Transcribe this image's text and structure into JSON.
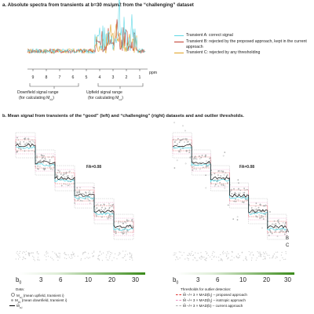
{
  "panel_a": {
    "title": "a. Absolute spectra from transients at b=30 ms/µm2 from the “challenging” dataset",
    "ppm_label": "ppm",
    "ppm_ticks": [
      "9",
      "8",
      "7",
      "6",
      "5",
      "4",
      "3",
      "2",
      "1"
    ],
    "legend": [
      {
        "label": "Transient A: correct signal",
        "color": "#5fd8e6"
      },
      {
        "label": "Transient B: rejected by the proposed approach, kept in the current approach",
        "color": "#c0392b"
      },
      {
        "label": "Transient C: rejected by any thresholding",
        "color": "#e0a020"
      }
    ],
    "downfield_label": "Downfield signal range",
    "downfield_sub": "(for calculating M",
    "downfield_subscript": "d,i",
    "upfield_label": "Upfield signal range",
    "upfield_sub": "(for calculating M",
    "upfield_subscript": "u,i"
  },
  "panel_b": {
    "title": "b. Mean signal from transients of the “good” (left) and “challenging” (right) datasets and and outlier thresholds.",
    "fa_left": "FA=0.08",
    "fa_right": "FA=0.08",
    "x_ticks": [
      "b",
      "3",
      "6",
      "10",
      "20",
      "30"
    ],
    "b0_sub": "0",
    "markers": [
      "A",
      "B",
      "C"
    ],
    "data_title": "Data:",
    "data_items": [
      {
        "main": "M",
        "sub": "u,i",
        "rest": " (mean upfield, transient i)"
      },
      {
        "main": "M",
        "sub": "d,i",
        "rest": " (mean downfield, transient i)"
      },
      {
        "main": "M̃",
        "sub": "u,i",
        "rest": ""
      }
    ],
    "threshold_title": "Thresholds for outlier detection:",
    "threshold_items": [
      {
        "main": "M̃",
        "rest": " –/+ 3 × MAD(b",
        "tail": ") – proposed approach",
        "color": "#e03030"
      },
      {
        "main": "M̃",
        "rest": " –/+ 3 × MAD(b",
        "tail": ") – isotropic approach",
        "color": "#e890c0"
      },
      {
        "main": "M̃",
        "rest": " –/+ 3 × MAD(b)",
        "tail": " – current approach",
        "color": "#b0b0b0"
      }
    ]
  },
  "colors": {
    "cyan": "#5fd8e6",
    "red": "#c0392b",
    "orange": "#e0a020",
    "green": "#3a8a1a"
  }
}
